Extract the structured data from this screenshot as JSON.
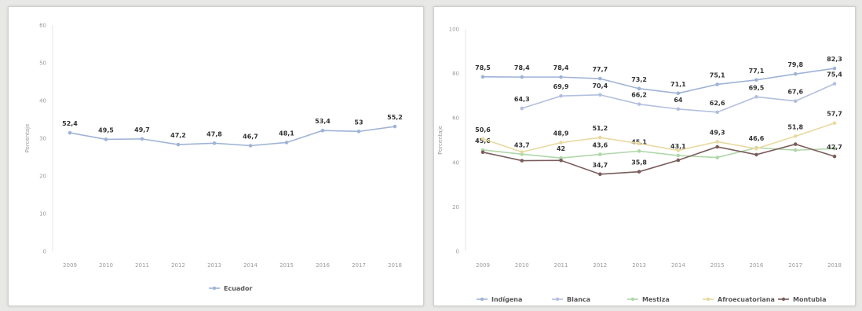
{
  "chart_data": [
    {
      "type": "line",
      "ylabel": "Porcentaje",
      "ylim": [
        0,
        100
      ],
      "yticks": [
        0,
        10,
        20,
        30,
        40,
        50,
        60
      ],
      "categories": [
        "2009",
        "2010",
        "2011",
        "2012",
        "2013",
        "2014",
        "2015",
        "2016",
        "2017",
        "2018"
      ],
      "legend_position": "bottom",
      "series": [
        {
          "name": "Ecuador",
          "color": "#9fb3d6",
          "values": [
            52.4,
            49.5,
            49.7,
            47.2,
            47.8,
            46.7,
            48.1,
            53.4,
            53,
            55.2
          ],
          "labels": [
            "52,4",
            "49,5",
            "49,7",
            "47,2",
            "47,8",
            "46,7",
            "48,1",
            "53,4",
            "53",
            "55,2"
          ]
        }
      ]
    },
    {
      "type": "line",
      "ylabel": "Porcentaje",
      "ylim": [
        0,
        100
      ],
      "yticks": [
        0,
        20,
        40,
        60,
        80,
        100
      ],
      "categories": [
        "2009",
        "2010",
        "2011",
        "2012",
        "2013",
        "2014",
        "2015",
        "2016",
        "2017",
        "2018"
      ],
      "legend_position": "bottom",
      "series": [
        {
          "name": "Indígena",
          "color": "#9fb3d6",
          "values": [
            78.5,
            78.4,
            78.4,
            77.7,
            73.2,
            71.1,
            75.1,
            77.1,
            79.8,
            82.3
          ],
          "labels": [
            "78,5",
            "78,4",
            "78,4",
            "77,7",
            "73,2",
            "71,1",
            "75,1",
            "77,1",
            "79,8",
            "82,3"
          ]
        },
        {
          "name": "Blanca",
          "color": "#b3bfe0",
          "values": [
            null,
            64.3,
            69.9,
            70.4,
            66.2,
            64,
            62.6,
            69.5,
            67.6,
            75.4
          ],
          "labels": [
            "",
            "64,3",
            "69,9",
            "70,4",
            "66,2",
            "64",
            "62,6",
            "69,5",
            "67,6",
            "75,4"
          ]
        },
        {
          "name": "Mestiza",
          "color": "#aed7a8",
          "values": [
            45.6,
            43.7,
            42,
            43.6,
            45.1,
            43.1,
            42.2,
            46.6,
            45.5,
            46.2
          ],
          "labels": [
            "45,6",
            "43,7",
            "42",
            "43,6",
            "45,1",
            "43,1",
            "",
            "46,6",
            "",
            ""
          ]
        },
        {
          "name": "Afroecuatoriana",
          "color": "#e8d9a0",
          "values": [
            50.6,
            44.7,
            48.9,
            51.2,
            48.5,
            45.4,
            49.3,
            46.2,
            51.8,
            57.7
          ],
          "labels": [
            "50,6",
            "",
            "48,9",
            "51,2",
            "",
            "",
            "49,3",
            "",
            "51,8",
            "57,7"
          ]
        },
        {
          "name": "Montubia",
          "color": "#7a5c5c",
          "values": [
            44.6,
            40.8,
            40.9,
            34.7,
            35.8,
            41,
            47,
            43.5,
            48.2,
            42.7
          ],
          "labels": [
            "",
            "",
            "",
            "34,7",
            "35,8",
            "",
            "",
            "",
            "",
            "42,7"
          ]
        }
      ]
    }
  ]
}
